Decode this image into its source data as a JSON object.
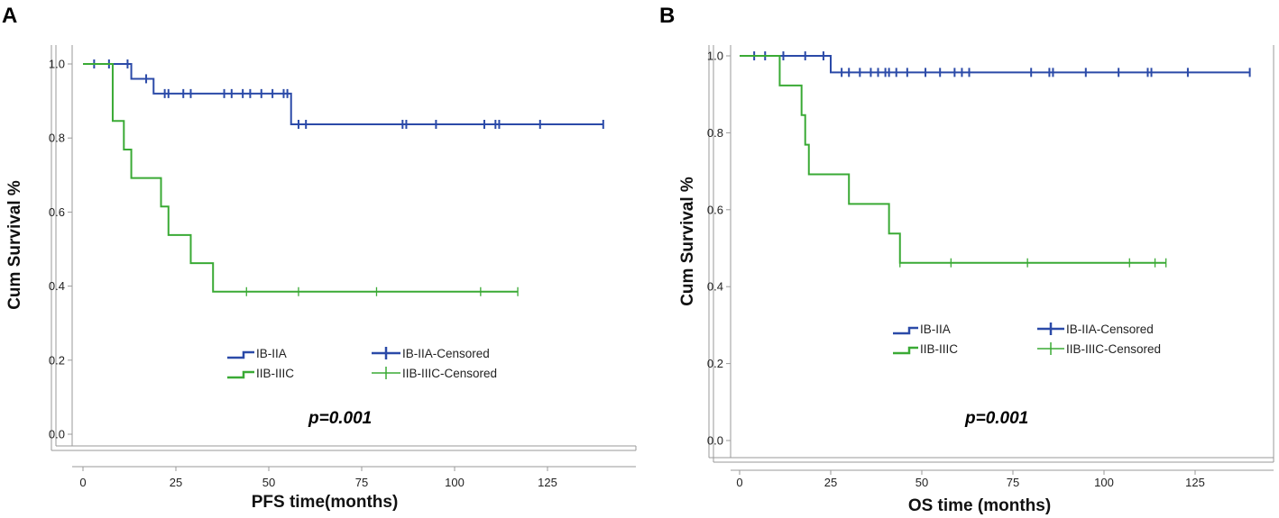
{
  "chart_data": [
    {
      "panel_label": "A",
      "type": "line",
      "subtype": "kaplan-meier",
      "xlabel": "PFS time(months)",
      "ylabel": "Cum Survival %",
      "xlim": [
        0,
        145
      ],
      "ylim": [
        0,
        1.0
      ],
      "xticks": [
        "0",
        "25",
        "50",
        "75",
        "100",
        "125"
      ],
      "yticks": [
        "0.0",
        "0.2",
        "0.4",
        "0.6",
        "0.8",
        "1.0"
      ],
      "annotation": "p=0.001",
      "legend": [
        "IB-IIA",
        "IB-IIA-Censored",
        "IIB-IIIC",
        "IIB-IIIC-Censored"
      ],
      "series": [
        {
          "name": "IB-IIA",
          "color": "#2b4aa8",
          "steps": [
            [
              0,
              1.0
            ],
            [
              13,
              0.96
            ],
            [
              19,
              0.92
            ],
            [
              56,
              0.837
            ],
            [
              140,
              0.837
            ]
          ],
          "censored": [
            3,
            7,
            12,
            17,
            22,
            23,
            27,
            29,
            38,
            40,
            43,
            45,
            48,
            51,
            54,
            55,
            58,
            60,
            86,
            87,
            95,
            108,
            111,
            112,
            123,
            140
          ]
        },
        {
          "name": "IIB-IIIC",
          "color": "#3aaa35",
          "steps": [
            [
              0,
              1.0
            ],
            [
              8,
              0.846
            ],
            [
              11,
              0.769
            ],
            [
              13,
              0.692
            ],
            [
              21,
              0.615
            ],
            [
              23,
              0.538
            ],
            [
              29,
              0.462
            ],
            [
              35,
              0.385
            ],
            [
              117,
              0.385
            ]
          ],
          "censored": [
            44,
            58,
            79,
            107,
            117
          ]
        }
      ]
    },
    {
      "panel_label": "B",
      "type": "line",
      "subtype": "kaplan-meier",
      "xlabel": "OS time (months)",
      "ylabel": "Cum Survival %",
      "xlim": [
        0,
        145
      ],
      "ylim": [
        0,
        1.0
      ],
      "xticks": [
        "0",
        "25",
        "50",
        "75",
        "100",
        "125"
      ],
      "yticks": [
        "0.0",
        "0.2",
        "0.4",
        "0.6",
        "0.8",
        "1.0"
      ],
      "annotation": "p=0.001",
      "legend": [
        "IB-IIA",
        "IB-IIA-Censored",
        "IIB-IIIC",
        "IIB-IIIC-Censored"
      ],
      "series": [
        {
          "name": "IB-IIA",
          "color": "#2b4aa8",
          "steps": [
            [
              0,
              1.0
            ],
            [
              25,
              0.957
            ],
            [
              140,
              0.957
            ]
          ],
          "censored": [
            4,
            7,
            12,
            18,
            23,
            28,
            30,
            33,
            36,
            38,
            40,
            41,
            43,
            46,
            51,
            55,
            59,
            61,
            63,
            80,
            85,
            86,
            95,
            104,
            112,
            113,
            123,
            140
          ]
        },
        {
          "name": "IIB-IIIC",
          "color": "#3aaa35",
          "steps": [
            [
              0,
              1.0
            ],
            [
              11,
              0.923
            ],
            [
              17,
              0.846
            ],
            [
              18,
              0.769
            ],
            [
              19,
              0.692
            ],
            [
              30,
              0.615
            ],
            [
              41,
              0.538
            ],
            [
              44,
              0.462
            ],
            [
              117,
              0.462
            ]
          ],
          "censored": [
            44,
            58,
            79,
            107,
            114,
            117
          ]
        }
      ]
    }
  ]
}
